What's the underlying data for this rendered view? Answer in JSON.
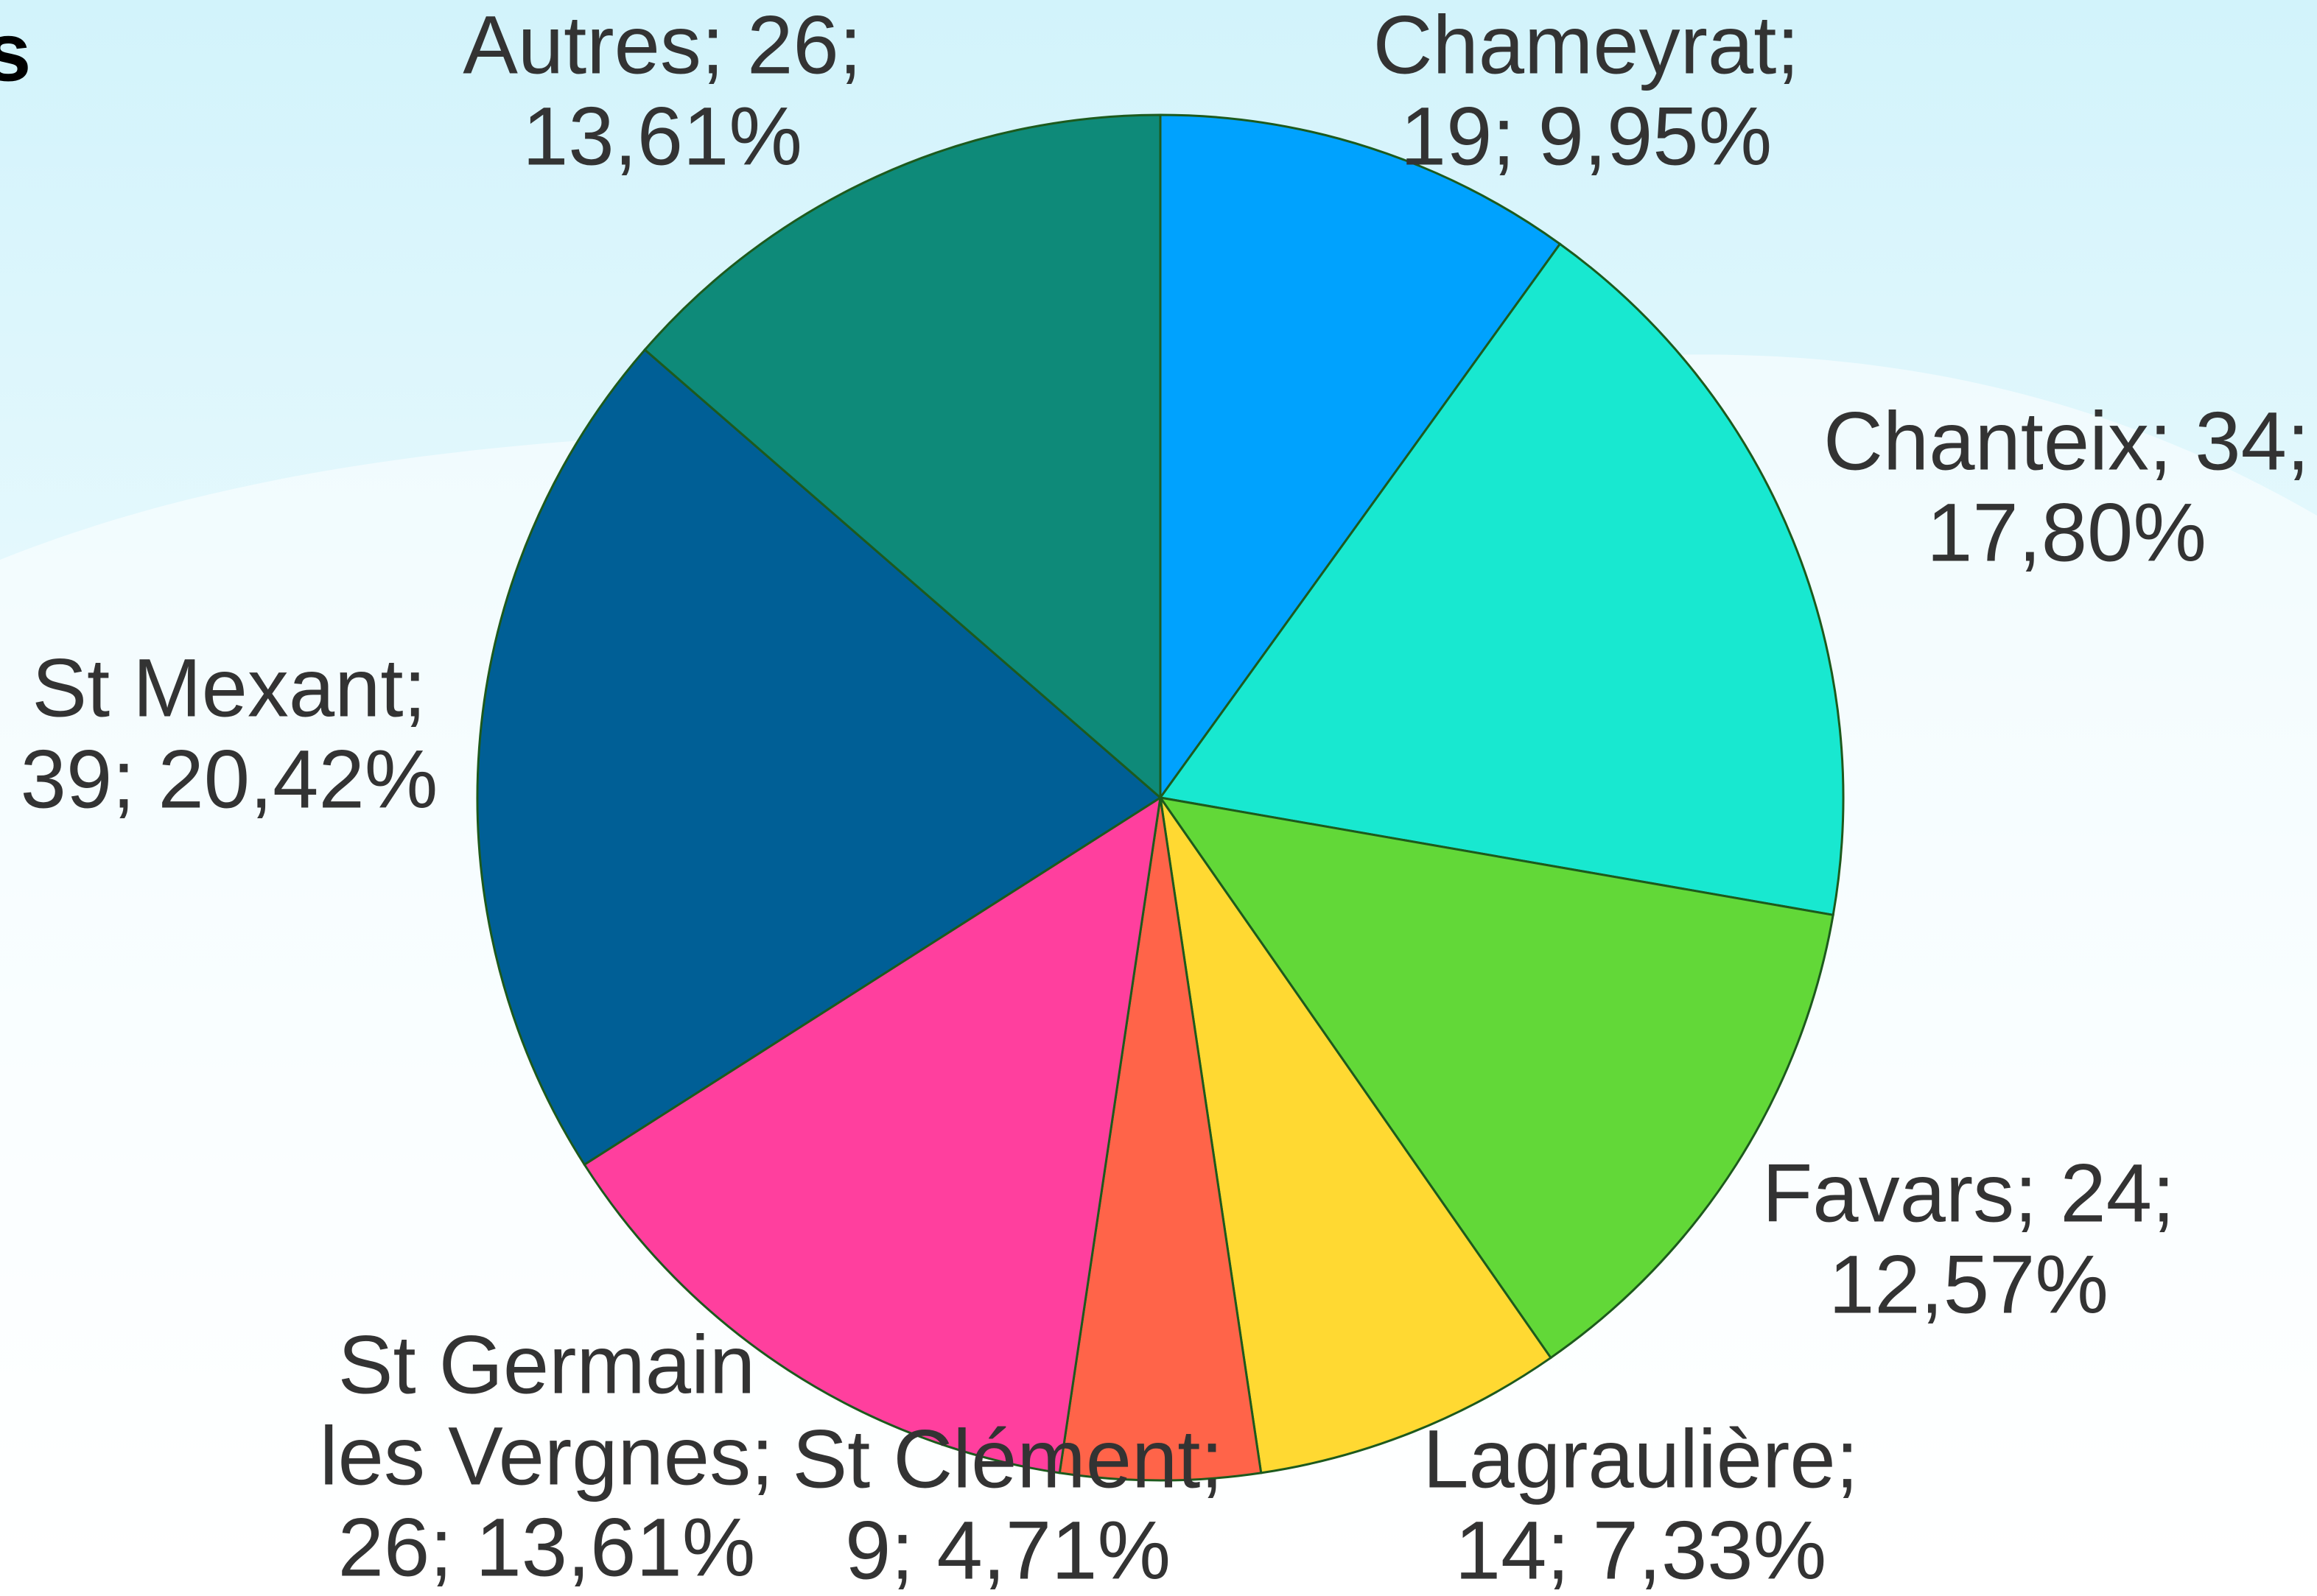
{
  "chart_data": {
    "type": "pie",
    "title": "s",
    "categories": [
      "Chameyrat",
      "Chanteix",
      "Favars",
      "Lagraulière",
      "St Clément",
      "St Germain les Vergnes",
      "St Mexant",
      "Autres"
    ],
    "values": [
      19,
      34,
      24,
      14,
      9,
      26,
      39,
      26
    ],
    "value_labels": [
      [
        "Chameyrat;",
        "19; 9,95%"
      ],
      [
        "Chanteix; 34;",
        "17,80%"
      ],
      [
        "Favars; 24;",
        "12,57%"
      ],
      [
        "Lagraulière;",
        "14; 7,33%"
      ],
      [
        "St Clément;",
        "9; 4,71%"
      ],
      [
        "St Germain",
        "les Vergnes;",
        "26; 13,61%"
      ],
      [
        "St Mexant;",
        "39; 20,42%"
      ],
      [
        "Autres; 26;",
        "13,61%"
      ]
    ],
    "colors": [
      "#00a2fe",
      "#18e8d0",
      "#62d838",
      "#ffd932",
      "#ff6449",
      "#ff3f9e",
      "#005f96",
      "#0e8a79"
    ]
  }
}
